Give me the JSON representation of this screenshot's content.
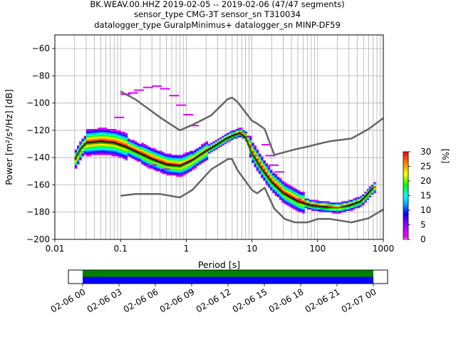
{
  "title": {
    "line1": "BK.WEAV.00.HHZ   2019-02-05 -- 2019-02-06  (47/47 segments)",
    "line2": "sensor_type CMG-3T sensor_sn T310034",
    "line3": "datalogger_type GuralpMinimus+ datalogger_sn MINP-DF59"
  },
  "chart_data": [
    {
      "type": "heatmap",
      "xlabel": "Period [s]",
      "ylabel": "Power [m²/s⁴/Hz] [dB]",
      "xscale": "log",
      "xlim": [
        0.01,
        1000
      ],
      "ylim": [
        -200,
        -50
      ],
      "xticks": [
        0.01,
        0.1,
        1,
        10,
        100,
        1000
      ],
      "xtick_labels": [
        "0.01",
        "0.1",
        "1",
        "10",
        "100",
        "1000"
      ],
      "yticks": [
        -200,
        -180,
        -160,
        -140,
        -120,
        -100,
        -80,
        -60
      ],
      "ytick_labels": [
        "−200",
        "−180",
        "−160",
        "−140",
        "−120",
        "−100",
        "−80",
        "−60"
      ],
      "grid": true,
      "colorbar": {
        "label": "[%]",
        "range": [
          0,
          30
        ],
        "ticks": [
          0,
          5,
          10,
          15,
          20,
          25,
          30
        ],
        "tick_labels": [
          "0",
          "5",
          "10",
          "15",
          "20",
          "25",
          "30"
        ]
      },
      "series": [
        {
          "role": "mean",
          "color": "#000000",
          "points": [
            [
              0.02,
              -141
            ],
            [
              0.025,
              -133
            ],
            [
              0.03,
              -129
            ],
            [
              0.05,
              -128
            ],
            [
              0.08,
              -129
            ],
            [
              0.12,
              -132
            ],
            [
              0.2,
              -137
            ],
            [
              0.3,
              -141
            ],
            [
              0.5,
              -145
            ],
            [
              0.8,
              -146
            ],
            [
              1.2,
              -142
            ],
            [
              2,
              -135
            ],
            [
              3,
              -130
            ],
            [
              4,
              -126
            ],
            [
              5.5,
              -123
            ],
            [
              6.5,
              -122
            ],
            [
              8,
              -125
            ],
            [
              10,
              -137
            ],
            [
              14,
              -148
            ],
            [
              20,
              -158
            ],
            [
              30,
              -166
            ],
            [
              50,
              -172
            ],
            [
              80,
              -175
            ],
            [
              120,
              -176
            ],
            [
              200,
              -177
            ],
            [
              300,
              -175
            ],
            [
              450,
              -172
            ],
            [
              700,
              -162
            ]
          ]
        },
        {
          "role": "mode",
          "color": "#00a000",
          "points": [
            [
              0.02,
              -142
            ],
            [
              0.025,
              -134
            ],
            [
              0.03,
              -130
            ],
            [
              0.05,
              -129
            ],
            [
              0.08,
              -130
            ],
            [
              0.12,
              -133
            ],
            [
              0.2,
              -138
            ],
            [
              0.3,
              -142
            ],
            [
              0.5,
              -146
            ],
            [
              0.8,
              -147
            ],
            [
              1.2,
              -143
            ],
            [
              2,
              -136
            ],
            [
              3,
              -131
            ],
            [
              4,
              -127
            ],
            [
              5.5,
              -124
            ],
            [
              6.5,
              -123
            ],
            [
              8,
              -126
            ],
            [
              10,
              -138
            ],
            [
              14,
              -149
            ],
            [
              20,
              -159
            ],
            [
              30,
              -167
            ],
            [
              50,
              -173
            ],
            [
              80,
              -176
            ],
            [
              120,
              -177
            ],
            [
              200,
              -177
            ],
            [
              300,
              -176
            ],
            [
              450,
              -173
            ],
            [
              700,
              -163
            ]
          ]
        },
        {
          "role": "NHNM",
          "color": "#666666",
          "points": [
            [
              0.1,
              -91.5
            ],
            [
              0.17,
              -97.4
            ],
            [
              0.4,
              -110.5
            ],
            [
              0.8,
              -120
            ],
            [
              1.24,
              -116
            ],
            [
              2.4,
              -109
            ],
            [
              4.3,
              -97
            ],
            [
              5,
              -96
            ],
            [
              6,
              -99
            ],
            [
              10,
              -113
            ],
            [
              12,
              -115
            ],
            [
              15.6,
              -119
            ],
            [
              21.9,
              -138
            ],
            [
              31.6,
              -136
            ],
            [
              45,
              -134
            ],
            [
              70,
              -132
            ],
            [
              101,
              -130
            ],
            [
              154,
              -128
            ],
            [
              328,
              -126
            ],
            [
              600,
              -119
            ],
            [
              1000,
              -111
            ]
          ]
        },
        {
          "role": "NLNM",
          "color": "#666666",
          "points": [
            [
              0.1,
              -168
            ],
            [
              0.17,
              -166.7
            ],
            [
              0.4,
              -166.7
            ],
            [
              0.8,
              -169.2
            ],
            [
              1.24,
              -163.7
            ],
            [
              2.4,
              -148.6
            ],
            [
              4.3,
              -141.1
            ],
            [
              5,
              -141.1
            ],
            [
              6,
              -149
            ],
            [
              10,
              -163.8
            ],
            [
              12,
              -166.2
            ],
            [
              15.6,
              -162.1
            ],
            [
              21.9,
              -177.5
            ],
            [
              31.6,
              -185
            ],
            [
              45,
              -187.5
            ],
            [
              70,
              -187.5
            ],
            [
              101,
              -185
            ],
            [
              154,
              -185
            ],
            [
              328,
              -187.5
            ],
            [
              600,
              -184.4
            ],
            [
              1000,
              -178
            ]
          ]
        }
      ]
    },
    {
      "type": "timeline",
      "xticks": [
        "02-06 00",
        "02-06 03",
        "02-06 06",
        "02-06 09",
        "02-06 12",
        "02-06 15",
        "02-06 18",
        "02-06 21",
        "02-07 00"
      ],
      "bands": [
        {
          "color": "#008000",
          "start": "02-06 00",
          "end": "02-07 00"
        },
        {
          "color": "#0000ff",
          "start": "02-06 00",
          "end": "02-07 00"
        }
      ]
    }
  ]
}
